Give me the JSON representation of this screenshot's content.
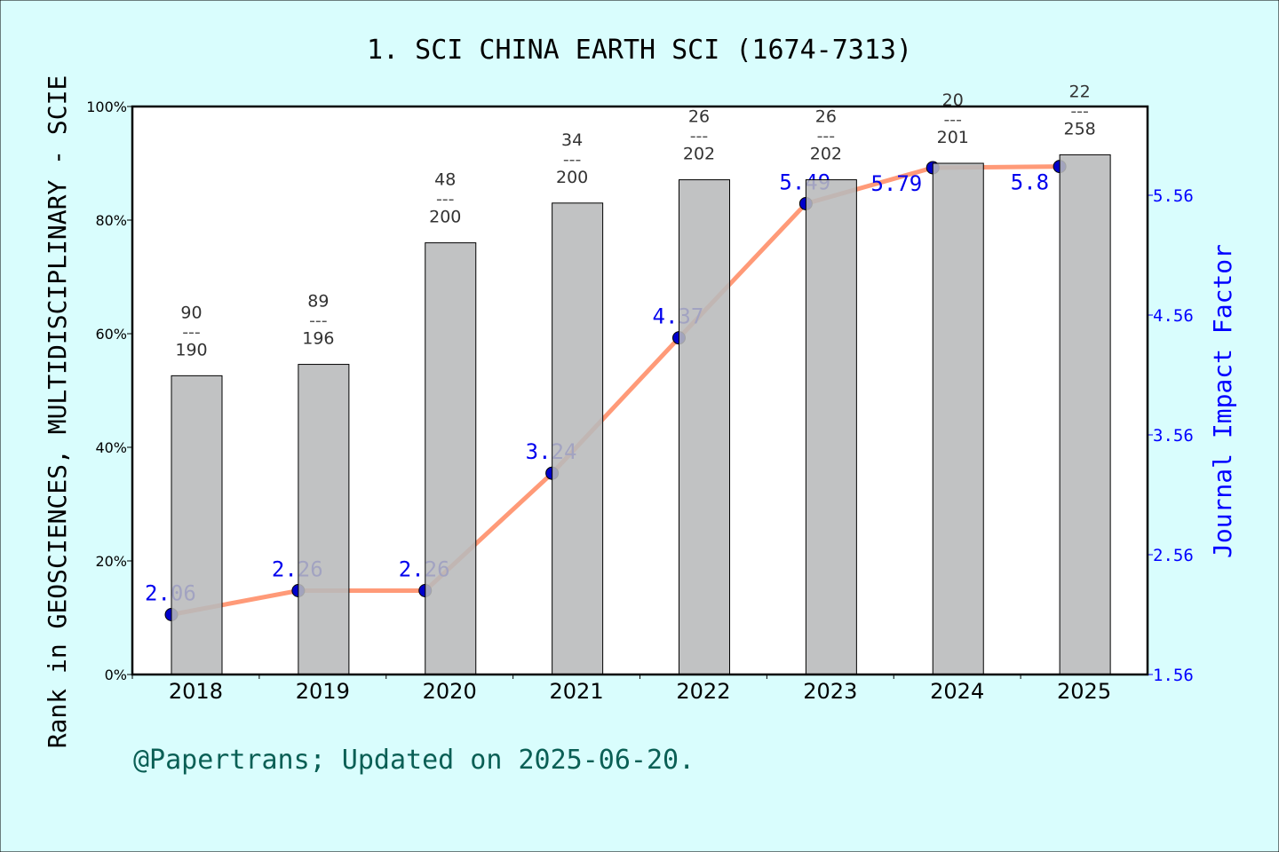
{
  "chart_data": {
    "type": "bar+line",
    "title": "1. SCI CHINA EARTH SCI (1674-7313)",
    "ylabel": "Rank in GEOSCIENCES, MULTIDISCIPLINARY - SCIE",
    "y2label": "Journal Impact Factor",
    "footer": "@Papertrans; Updated on 2025-06-20.",
    "categories": [
      "2018",
      "2019",
      "2020",
      "2021",
      "2022",
      "2023",
      "2024",
      "2025"
    ],
    "ylim": [
      0,
      100
    ],
    "yticks": [
      "0%",
      "20%",
      "40%",
      "60%",
      "80%",
      "100%"
    ],
    "y2lim": [
      1.56,
      6.3
    ],
    "y2ticks": [
      "1.56",
      "2.56",
      "3.56",
      "4.56",
      "5.56"
    ],
    "ranks": [
      90,
      89,
      48,
      34,
      26,
      26,
      20,
      22
    ],
    "totals": [
      190,
      196,
      200,
      200,
      202,
      202,
      201,
      258
    ],
    "rank_separator": "---",
    "bar_percentiles": [
      52.6,
      54.6,
      76.0,
      83.0,
      87.1,
      87.1,
      90.0,
      91.5
    ],
    "impact_factors": [
      2.06,
      2.26,
      2.26,
      3.24,
      4.37,
      5.49,
      5.79,
      5.8
    ],
    "if_labels": [
      "2.06",
      "2.26",
      "2.26",
      "3.24",
      "4.37",
      "5.49",
      "5.79",
      "5.8"
    ],
    "colors": {
      "bar": "#b8b9bb",
      "line": "#ff9a78",
      "marker": "#0000cc",
      "if_text": "#0000ee",
      "right_axis": "#0000ff",
      "footer": "#0a5f55",
      "background": "#d9fdfd"
    }
  }
}
